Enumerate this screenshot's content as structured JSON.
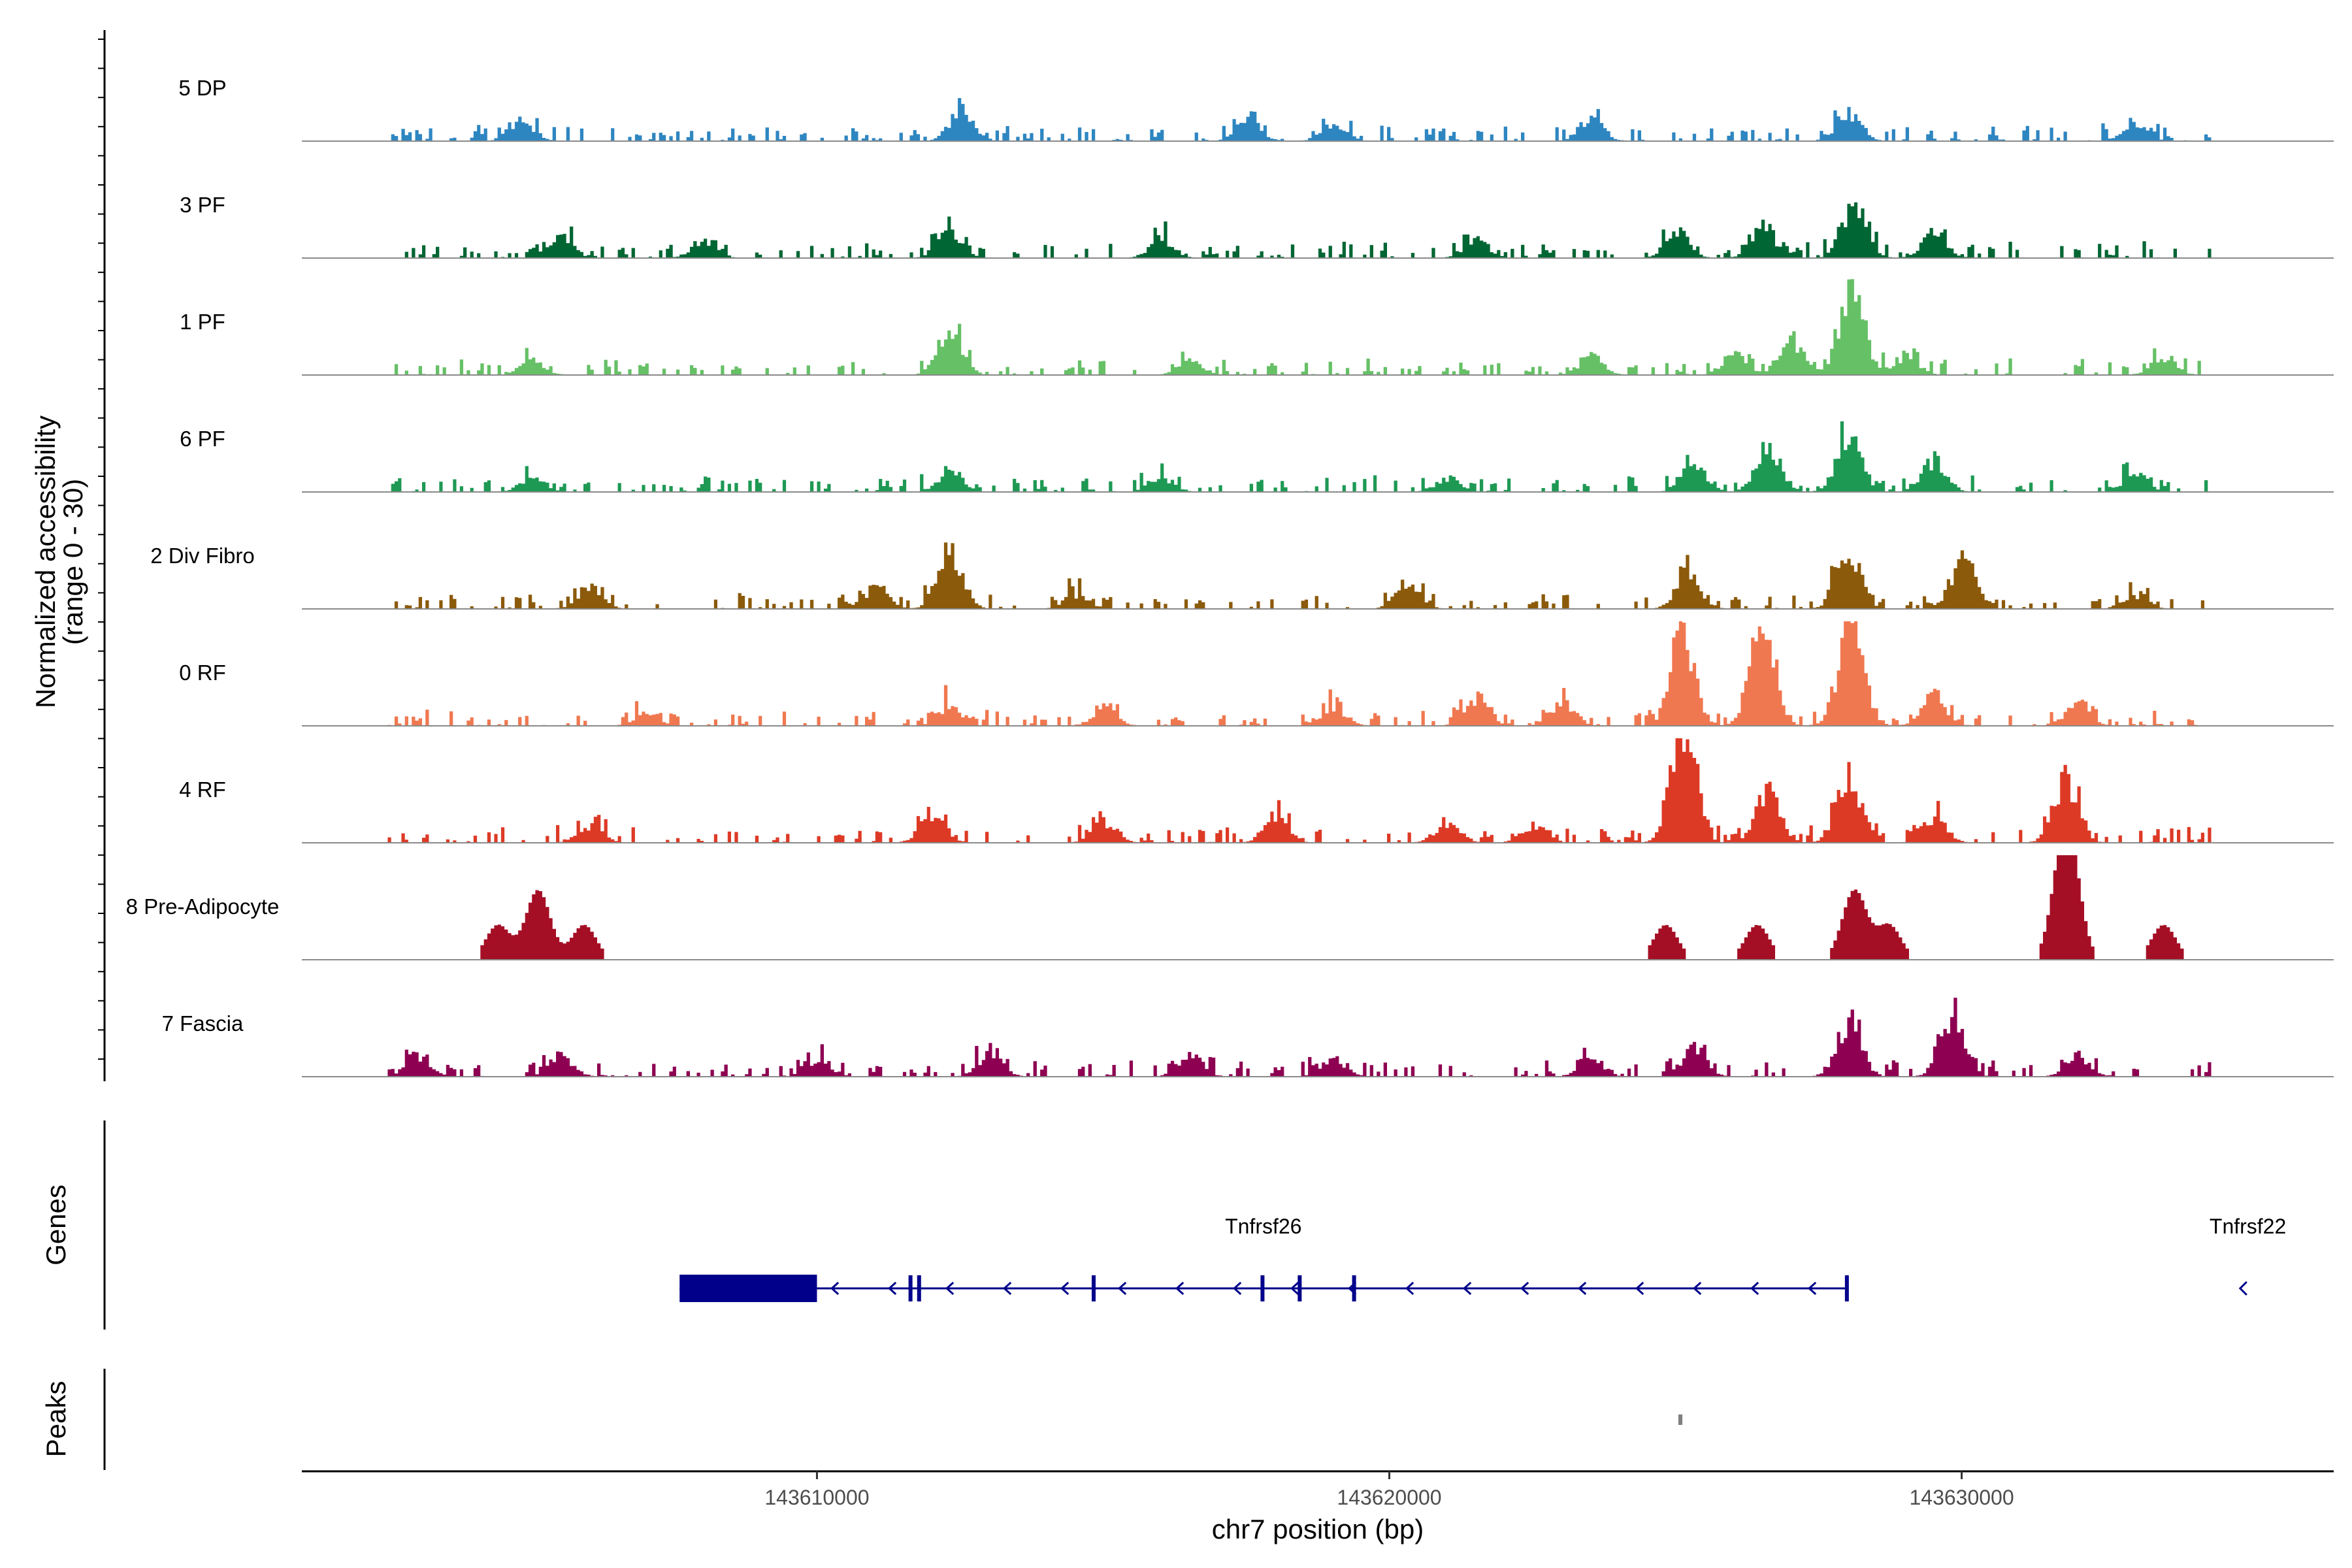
{
  "chart_data": {
    "type": "area",
    "title": "",
    "ylabel_line1": "Normalized accessibility",
    "ylabel_line2": "(range 0 - 30)",
    "xlabel": "chr7 position (bp)",
    "xlim": [
      143601000,
      143636500
    ],
    "ylim": [
      0,
      30
    ],
    "x_ticks": [
      {
        "value": 143610000,
        "label": "143610000"
      },
      {
        "value": 143620000,
        "label": "143620000"
      },
      {
        "value": 143630000,
        "label": "143630000"
      }
    ],
    "tracks": [
      {
        "name": "5 DP",
        "color": "#2E86C1",
        "peaks": [
          [
            143604800,
            6
          ],
          [
            143612500,
            9
          ],
          [
            143617500,
            7
          ],
          [
            143619000,
            5
          ],
          [
            143623500,
            6
          ],
          [
            143628000,
            8
          ],
          [
            143633000,
            5
          ]
        ]
      },
      {
        "name": "3 PF",
        "color": "#006633",
        "peaks": [
          [
            143605500,
            6
          ],
          [
            143608000,
            5
          ],
          [
            143612300,
            8
          ],
          [
            143616000,
            5
          ],
          [
            143621500,
            5
          ],
          [
            143625000,
            7
          ],
          [
            143626500,
            7
          ],
          [
            143628100,
            16
          ],
          [
            143629500,
            7
          ]
        ]
      },
      {
        "name": "1 PF",
        "color": "#66C066",
        "peaks": [
          [
            143605000,
            4
          ],
          [
            143612300,
            12
          ],
          [
            143616500,
            4
          ],
          [
            143623500,
            5
          ],
          [
            143626000,
            6
          ],
          [
            143627000,
            10
          ],
          [
            143628050,
            26
          ],
          [
            143629000,
            5
          ],
          [
            143633500,
            5
          ]
        ]
      },
      {
        "name": "6 PF",
        "color": "#1E9954",
        "peaks": [
          [
            143605000,
            4
          ],
          [
            143612300,
            6
          ],
          [
            143616000,
            4
          ],
          [
            143621000,
            4
          ],
          [
            143625300,
            8
          ],
          [
            143626600,
            13
          ],
          [
            143628000,
            15
          ],
          [
            143629500,
            9
          ],
          [
            143633000,
            5
          ]
        ]
      },
      {
        "name": "2 Div Fibro",
        "color": "#8B5A0A",
        "peaks": [
          [
            143606000,
            6
          ],
          [
            143611000,
            6
          ],
          [
            143612300,
            17
          ],
          [
            143614500,
            4
          ],
          [
            143620300,
            7
          ],
          [
            143625200,
            10
          ],
          [
            143628000,
            16
          ],
          [
            143630000,
            14
          ],
          [
            143633000,
            4
          ]
        ]
      },
      {
        "name": "0 RF",
        "color": "#F07850",
        "peaks": [
          [
            143607000,
            4
          ],
          [
            143612300,
            6
          ],
          [
            143615000,
            5
          ],
          [
            143619000,
            5
          ],
          [
            143621500,
            8
          ],
          [
            143623000,
            7
          ],
          [
            143625100,
            25
          ],
          [
            143626500,
            28
          ],
          [
            143628050,
            33
          ],
          [
            143629500,
            8
          ],
          [
            143632000,
            6
          ]
        ]
      },
      {
        "name": "4 RF",
        "color": "#DD3A26",
        "peaks": [
          [
            143606000,
            5
          ],
          [
            143612000,
            8
          ],
          [
            143615000,
            6
          ],
          [
            143618000,
            7
          ],
          [
            143621000,
            6
          ],
          [
            143622500,
            5
          ],
          [
            143625100,
            35
          ],
          [
            143626600,
            14
          ],
          [
            143628000,
            20
          ],
          [
            143629500,
            7
          ],
          [
            143631800,
            18
          ]
        ]
      },
      {
        "name": "8 Pre-Adipocyte",
        "color": "#A50F25",
        "peaks": [
          [
            143604400,
            10
          ],
          [
            143605100,
            20
          ],
          [
            143605900,
            10
          ],
          [
            143624800,
            10
          ],
          [
            143626400,
            10
          ],
          [
            143628100,
            20
          ],
          [
            143628700,
            10
          ],
          [
            143631800,
            40
          ],
          [
            143633500,
            10
          ]
        ]
      },
      {
        "name": "7 Fascia",
        "color": "#8E0152",
        "peaks": [
          [
            143603000,
            6
          ],
          [
            143605500,
            6
          ],
          [
            143610000,
            5
          ],
          [
            143613000,
            6
          ],
          [
            143616500,
            6
          ],
          [
            143619000,
            5
          ],
          [
            143623500,
            5
          ],
          [
            143625300,
            8
          ],
          [
            143628000,
            15
          ],
          [
            143629800,
            17
          ],
          [
            143632000,
            6
          ]
        ]
      }
    ],
    "genes_label": "Genes",
    "genes": [
      {
        "name": "Tnfrsf26",
        "start": 143607600,
        "end": 143628000,
        "strand": "-",
        "label_pos": 143617800,
        "exons": [
          [
            143607600,
            143610000
          ],
          [
            143611600,
            143611650
          ],
          [
            143611750,
            143611900
          ],
          [
            143614800,
            143614900
          ],
          [
            143617750,
            143617870
          ],
          [
            143618400,
            143618520
          ],
          [
            143619350,
            143619450
          ],
          [
            143627960,
            143628000
          ]
        ]
      },
      {
        "name": "Tnfrsf22",
        "start": 143634900,
        "end": 143635000,
        "strand": "-",
        "label_pos": 143635000,
        "exons": []
      }
    ],
    "peaks_label": "Peaks",
    "peak_regions": [
      [
        143625050,
        143625120
      ]
    ]
  }
}
